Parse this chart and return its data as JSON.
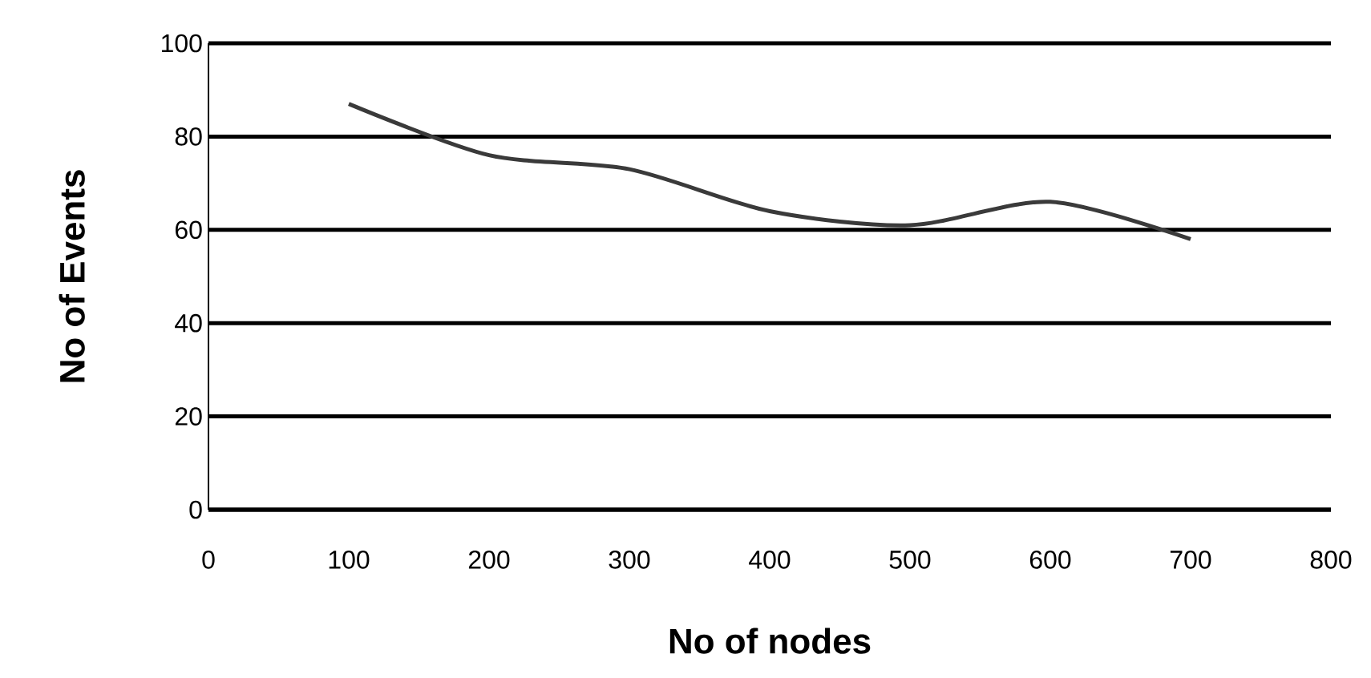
{
  "chart_data": {
    "type": "line",
    "xlabel": "No of nodes",
    "ylabel": "No of Events",
    "x": [
      100,
      200,
      300,
      400,
      500,
      600,
      700
    ],
    "series": [
      {
        "color": "#3a3a3a",
        "values": [
          87,
          76,
          73,
          64,
          61,
          66,
          58
        ]
      }
    ],
    "xlim": [
      0,
      800
    ],
    "xticks": [
      0,
      100,
      200,
      300,
      400,
      500,
      600,
      700,
      800
    ],
    "ylim": [
      0,
      100
    ],
    "yticks": [
      0,
      20,
      40,
      60,
      80,
      100
    ],
    "grid": "y",
    "marker": "none",
    "line_style": "solid"
  }
}
